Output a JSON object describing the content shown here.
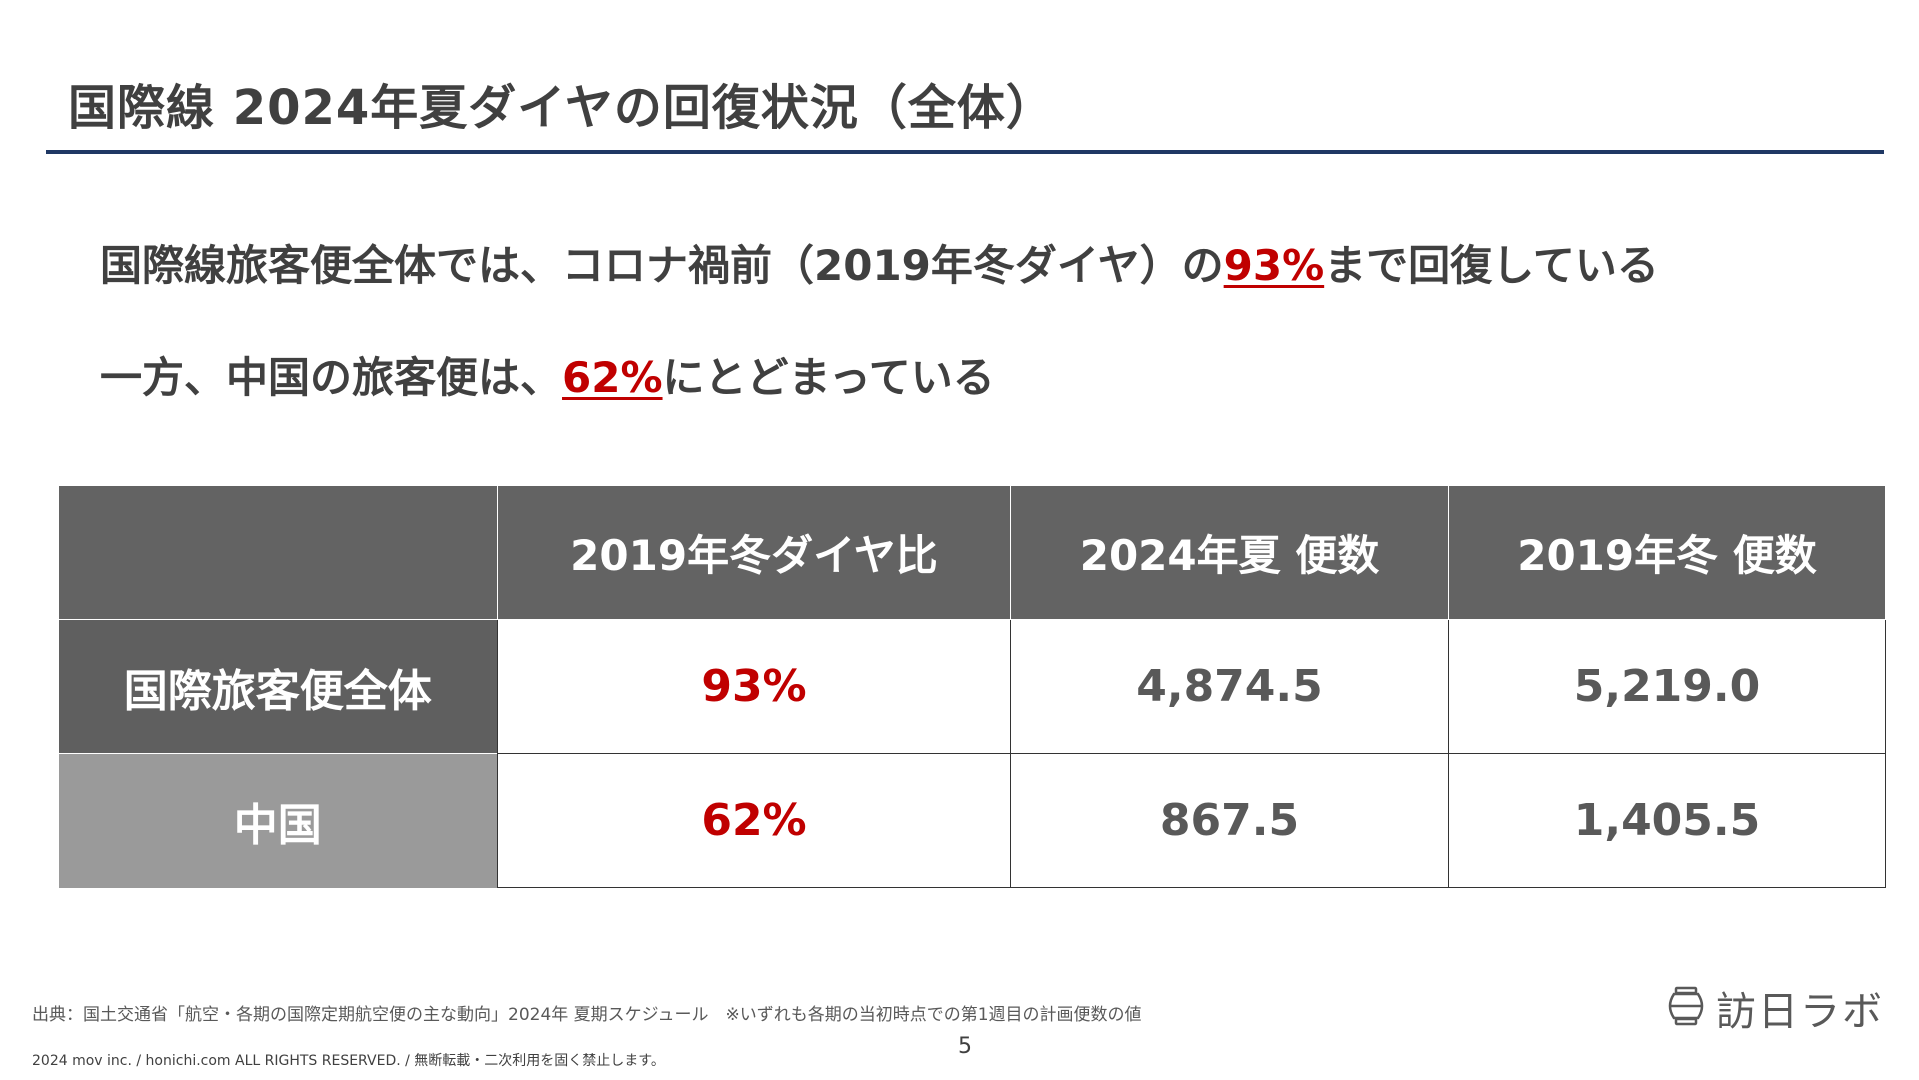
{
  "title": "国際線 2024年夏ダイヤの回復状況（全体）",
  "messages": {
    "line1": {
      "prefix": "国際線旅客便全体では、コロナ禍前（2019年冬ダイヤ）の",
      "highlight": "93%",
      "suffix": "まで回復している"
    },
    "line2": {
      "prefix": "一方、中国の旅客便は、",
      "highlight": "62%",
      "suffix": "にとどまっている"
    }
  },
  "table": {
    "headers": [
      "",
      "2019年冬ダイヤ比",
      "2024年夏 便数",
      "2019年冬 便数"
    ],
    "rows": [
      {
        "label": "国際旅客便全体",
        "ratio": "93%",
        "summer2024": "4,874.5",
        "winter2019": "5,219.0"
      },
      {
        "label": "中国",
        "ratio": "62%",
        "summer2024": "867.5",
        "winter2019": "1,405.5"
      }
    ]
  },
  "source": "出典：国土交通省「航空・各期の国際定期航空便の主な動向」2024年 夏期スケジュール　※いずれも各期の当初時点での第1週目の計画便数の値",
  "page_number": "5",
  "copyright": "2024 mov inc. / honichi.com ALL RIGHTS RESERVED. / 無断転載・二次利用を固く禁止します。",
  "logo": {
    "text": "訪日ラボ",
    "icon": "lantern-icon"
  },
  "colors": {
    "accent_red": "#c00000",
    "title_rule": "#1f3864",
    "header_gray": "#636363",
    "china_gray": "#9a9a9a"
  }
}
